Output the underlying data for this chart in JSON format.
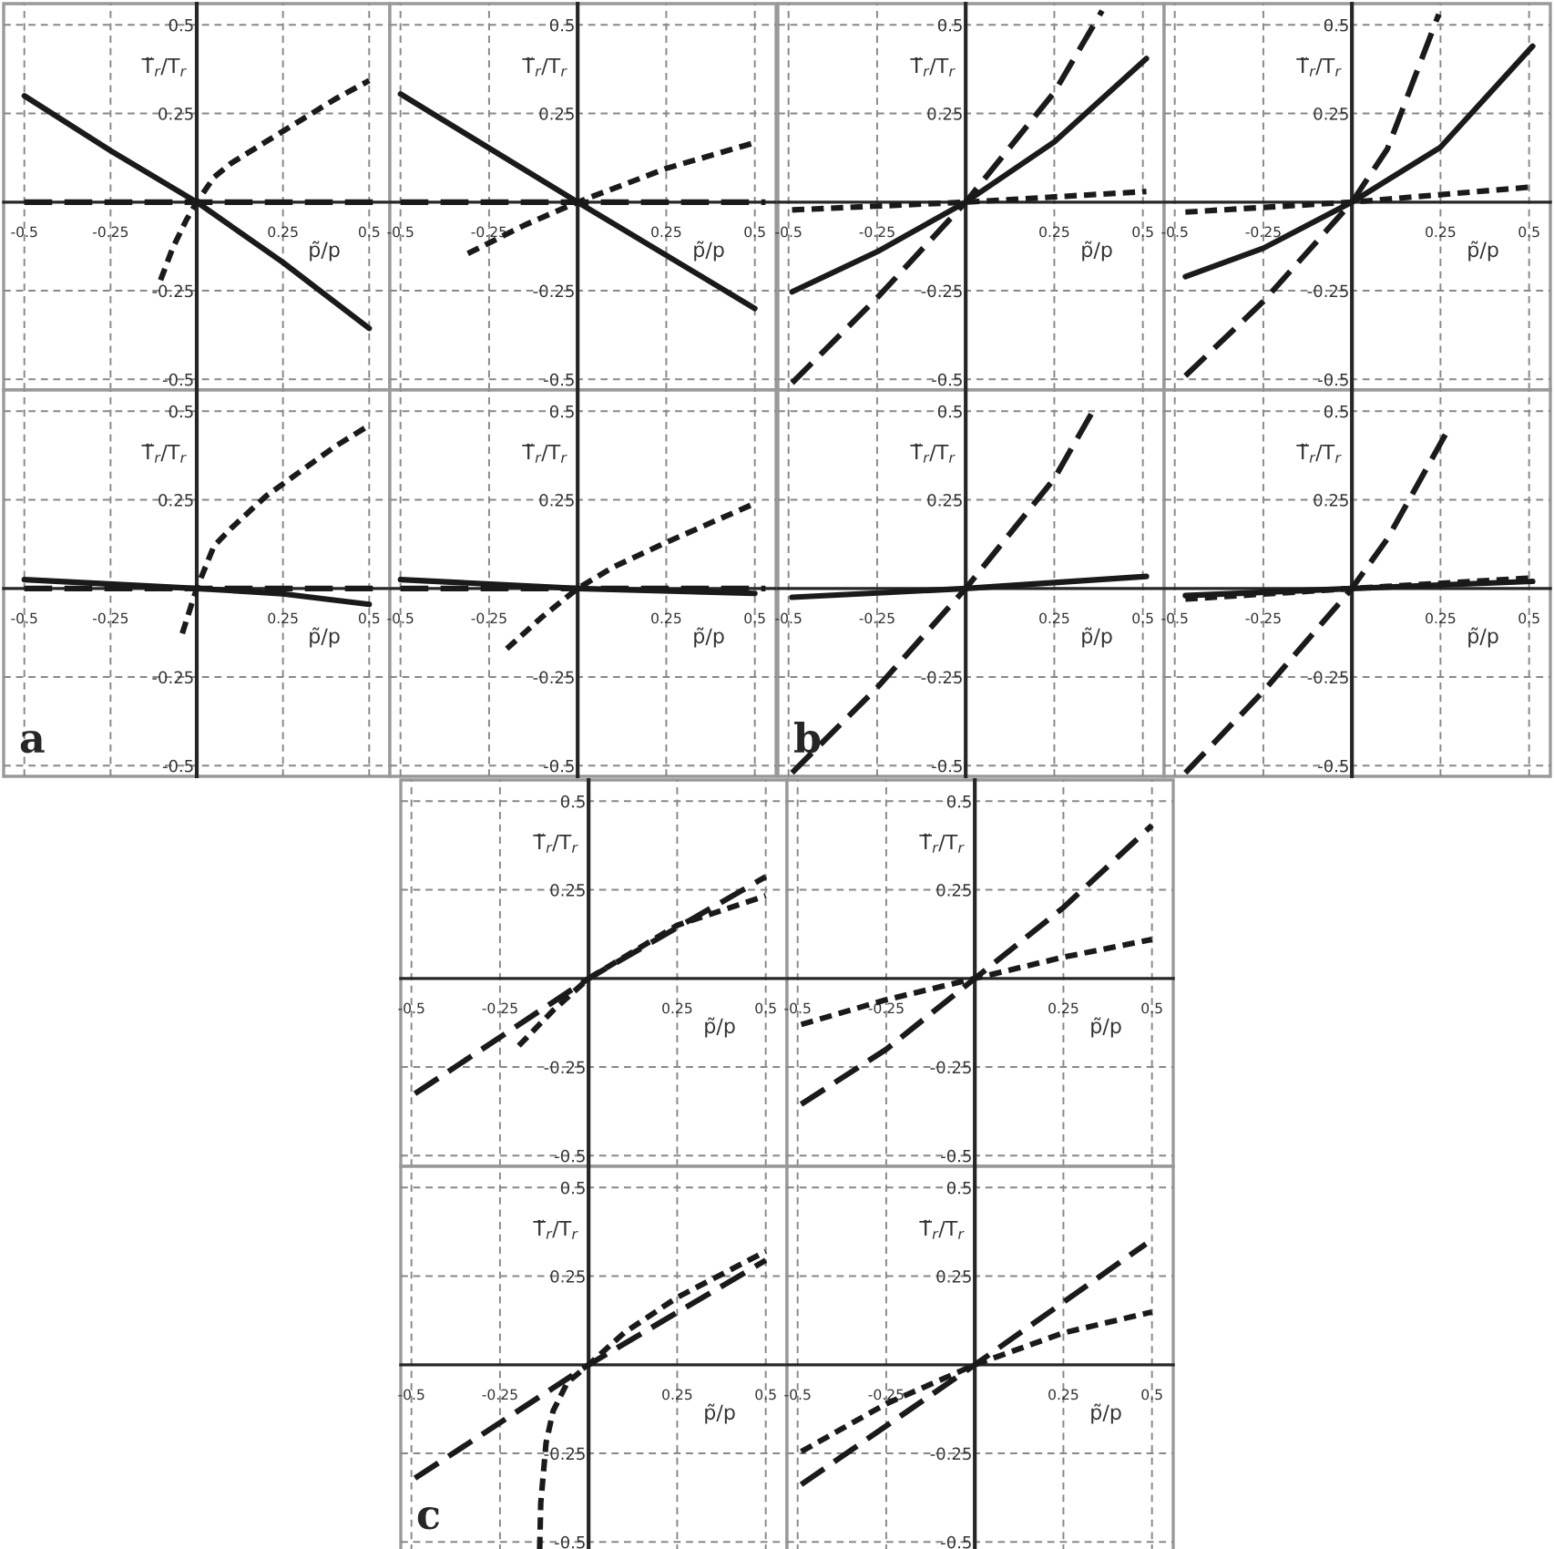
{
  "chart_data": [
    {
      "type": "line",
      "xlim": [
        -0.56,
        0.56
      ],
      "ylim": [
        -0.53,
        0.56
      ],
      "xticks": [
        -0.5,
        -0.25,
        0.25,
        0.5
      ],
      "yticks": [
        -0.5,
        -0.25,
        0.25,
        0.5
      ],
      "grid": true,
      "xlabel": "p̃/p",
      "ylabel": "T̃$_{r}$/T$_{r}$",
      "series": [
        {
          "color": "#1a1a1a",
          "line_style": "solid",
          "x": [
            -0.5,
            -0.25,
            0,
            0.25,
            0.5
          ],
          "values": [
            0.3,
            0.145,
            0,
            -0.17,
            -0.356
          ]
        },
        {
          "color": "#1a1a1a",
          "line_style": "dotted",
          "x": [
            -0.105,
            -0.07,
            -0.03,
            0,
            0.05,
            0.1,
            0.2,
            0.3,
            0.4,
            0.5
          ],
          "values": [
            -0.22,
            -0.13,
            -0.05,
            0,
            0.07,
            0.11,
            0.17,
            0.23,
            0.29,
            0.343
          ]
        },
        {
          "color": "#1a1a1a",
          "line_style": "dashed",
          "x": [
            -0.5,
            0.53
          ],
          "values": [
            0,
            0
          ]
        }
      ]
    },
    {
      "type": "line",
      "xlim": [
        -0.53,
        0.56
      ],
      "ylim": [
        -0.53,
        0.56
      ],
      "xticks": [
        -0.5,
        -0.25,
        0.25,
        0.5
      ],
      "yticks": [
        -0.5,
        -0.25,
        0.25,
        0.5
      ],
      "grid": true,
      "xlabel": "p̃/p",
      "ylabel": "T̃$_{r}$/T$_{r}$",
      "series": [
        {
          "color": "#1a1a1a",
          "line_style": "solid",
          "x": [
            -0.5,
            0,
            0.5
          ],
          "values": [
            0.305,
            0,
            -0.3
          ]
        },
        {
          "color": "#1a1a1a",
          "line_style": "dotted",
          "x": [
            -0.31,
            -0.15,
            0,
            0.25,
            0.49
          ],
          "values": [
            -0.145,
            -0.065,
            0,
            0.095,
            0.165
          ]
        },
        {
          "color": "#1a1a1a",
          "line_style": "dashed",
          "x": [
            -0.5,
            0.53
          ],
          "values": [
            0,
            0
          ]
        }
      ]
    },
    {
      "type": "line",
      "xlim": [
        -0.56,
        0.56
      ],
      "ylim": [
        -0.53,
        0.56
      ],
      "xticks": [
        -0.5,
        -0.25,
        0.25,
        0.5
      ],
      "yticks": [
        -0.5,
        -0.25,
        0.25,
        0.5
      ],
      "grid": true,
      "xlabel": "p̃/p",
      "ylabel": "T̃$_{r}$/T$_{r}$",
      "annotations": [
        "a"
      ],
      "series": [
        {
          "color": "#1a1a1a",
          "line_style": "solid",
          "x": [
            -0.5,
            0,
            0.25,
            0.5
          ],
          "values": [
            0.025,
            0,
            -0.015,
            -0.045
          ]
        },
        {
          "color": "#1a1a1a",
          "line_style": "dotted",
          "x": [
            -0.042,
            -0.02,
            0,
            0.05,
            0.1,
            0.2,
            0.3,
            0.4,
            0.5
          ],
          "values": [
            -0.127,
            -0.06,
            0,
            0.12,
            0.17,
            0.26,
            0.33,
            0.4,
            0.46
          ]
        },
        {
          "color": "#1a1a1a",
          "line_style": "dashed",
          "x": [
            -0.5,
            0.53
          ],
          "values": [
            0,
            0
          ]
        }
      ]
    },
    {
      "type": "line",
      "xlim": [
        -0.53,
        0.56
      ],
      "ylim": [
        -0.53,
        0.56
      ],
      "xticks": [
        -0.5,
        -0.25,
        0.25,
        0.5
      ],
      "yticks": [
        -0.5,
        -0.25,
        0.25,
        0.5
      ],
      "grid": true,
      "xlabel": "p̃/p",
      "ylabel": "T̃$_{r}$/T$_{r}$",
      "series": [
        {
          "color": "#1a1a1a",
          "line_style": "solid",
          "x": [
            -0.5,
            0,
            0.5
          ],
          "values": [
            0.025,
            0,
            -0.014
          ]
        },
        {
          "color": "#1a1a1a",
          "line_style": "dotted",
          "x": [
            -0.2,
            -0.1,
            0,
            0.1,
            0.25,
            0.5
          ],
          "values": [
            -0.17,
            -0.08,
            0,
            0.06,
            0.13,
            0.24
          ]
        },
        {
          "color": "#1a1a1a",
          "line_style": "dashed",
          "x": [
            -0.5,
            0.53
          ],
          "values": [
            0,
            0
          ]
        }
      ]
    },
    {
      "type": "line",
      "xlim": [
        -0.53,
        0.56
      ],
      "ylim": [
        -0.53,
        0.56
      ],
      "xticks": [
        -0.5,
        -0.25,
        0.25,
        0.5
      ],
      "yticks": [
        -0.5,
        -0.25,
        0.25,
        0.5
      ],
      "grid": true,
      "xlabel": "p̃/p",
      "ylabel": "T̃$_{r}$/T$_{r}$",
      "series": [
        {
          "color": "#1a1a1a",
          "line_style": "dashed",
          "x": [
            -0.49,
            -0.25,
            0,
            0.25,
            0.385
          ],
          "values": [
            -0.51,
            -0.27,
            0,
            0.31,
            0.54
          ]
        },
        {
          "color": "#1a1a1a",
          "line_style": "solid",
          "x": [
            -0.49,
            -0.25,
            0,
            0.25,
            0.51
          ],
          "values": [
            -0.253,
            -0.14,
            0,
            0.17,
            0.405
          ]
        },
        {
          "color": "#1a1a1a",
          "line_style": "dotted",
          "x": [
            -0.49,
            0,
            0.51
          ],
          "values": [
            -0.022,
            0,
            0.03
          ]
        }
      ]
    },
    {
      "type": "line",
      "xlim": [
        -0.53,
        0.56
      ],
      "ylim": [
        -0.53,
        0.56
      ],
      "xticks": [
        -0.5,
        -0.25,
        0.25,
        0.5
      ],
      "yticks": [
        -0.5,
        -0.25,
        0.25,
        0.5
      ],
      "grid": true,
      "xlabel": "p̃/p",
      "ylabel": "T̃$_{r}$/T$_{r}$",
      "series": [
        {
          "color": "#1a1a1a",
          "line_style": "dashed",
          "x": [
            -0.47,
            -0.25,
            0,
            0.1,
            0.245
          ],
          "values": [
            -0.49,
            -0.28,
            0,
            0.15,
            0.53
          ]
        },
        {
          "color": "#1a1a1a",
          "line_style": "solid",
          "x": [
            -0.47,
            -0.25,
            0,
            0.25,
            0.51
          ],
          "values": [
            -0.21,
            -0.13,
            0,
            0.155,
            0.44
          ]
        },
        {
          "color": "#1a1a1a",
          "line_style": "dotted",
          "x": [
            -0.47,
            0,
            0.51
          ],
          "values": [
            -0.028,
            0,
            0.043
          ]
        }
      ]
    },
    {
      "type": "line",
      "xlim": [
        -0.53,
        0.56
      ],
      "ylim": [
        -0.53,
        0.56
      ],
      "xticks": [
        -0.5,
        -0.25,
        0.25,
        0.5
      ],
      "yticks": [
        -0.5,
        -0.25,
        0.25,
        0.5
      ],
      "grid": true,
      "xlabel": "p̃/p",
      "ylabel": "T̃$_{r}$/T$_{r}$",
      "annotations": [
        "b"
      ],
      "series": [
        {
          "color": "#1a1a1a",
          "line_style": "dashed",
          "x": [
            -0.49,
            -0.25,
            0,
            0.25,
            0.37
          ],
          "values": [
            -0.52,
            -0.28,
            0,
            0.31,
            0.52
          ]
        },
        {
          "color": "#1a1a1a",
          "line_style": "solid",
          "x": [
            -0.49,
            0,
            0.51
          ],
          "values": [
            -0.025,
            0,
            0.034
          ]
        }
      ]
    },
    {
      "type": "line",
      "xlim": [
        -0.53,
        0.56
      ],
      "ylim": [
        -0.53,
        0.56
      ],
      "xticks": [
        -0.5,
        -0.25,
        0.25,
        0.5
      ],
      "yticks": [
        -0.5,
        -0.25,
        0.25,
        0.5
      ],
      "grid": true,
      "xlabel": "p̃/p",
      "ylabel": "T̃$_{r}$/T$_{r}$",
      "series": [
        {
          "color": "#1a1a1a",
          "line_style": "dashed",
          "x": [
            -0.47,
            -0.25,
            0,
            0.1,
            0.267
          ],
          "values": [
            -0.52,
            -0.29,
            0,
            0.14,
            0.44
          ]
        },
        {
          "color": "#1a1a1a",
          "line_style": "solid",
          "x": [
            -0.47,
            0,
            0.51
          ],
          "values": [
            -0.02,
            0,
            0.02
          ]
        },
        {
          "color": "#1a1a1a",
          "line_style": "dotted",
          "x": [
            -0.47,
            0,
            0.51
          ],
          "values": [
            -0.03,
            0,
            0.03
          ]
        }
      ]
    },
    {
      "type": "line",
      "xlim": [
        -0.53,
        0.56
      ],
      "ylim": [
        -0.53,
        0.56
      ],
      "xticks": [
        -0.5,
        -0.25,
        0.25,
        0.5
      ],
      "yticks": [
        -0.5,
        -0.25,
        0.25,
        0.5
      ],
      "grid": true,
      "xlabel": "p̃/p",
      "ylabel": "T̃$_{r}$/T$_{r}$",
      "series": [
        {
          "color": "#1a1a1a",
          "line_style": "dashed",
          "x": [
            -0.49,
            0,
            0.5
          ],
          "values": [
            -0.325,
            0,
            0.287
          ]
        },
        {
          "color": "#1a1a1a",
          "line_style": "dotted",
          "x": [
            -0.197,
            -0.1,
            0,
            0.25,
            0.5
          ],
          "values": [
            -0.19,
            -0.09,
            0,
            0.15,
            0.233
          ]
        }
      ]
    },
    {
      "type": "line",
      "xlim": [
        -0.53,
        0.56
      ],
      "ylim": [
        -0.53,
        0.56
      ],
      "xticks": [
        -0.5,
        -0.25,
        0.25,
        0.5
      ],
      "yticks": [
        -0.5,
        -0.25,
        0.25,
        0.5
      ],
      "grid": true,
      "xlabel": "p̃/p",
      "ylabel": "T̃$_{r}$/T$_{r}$",
      "series": [
        {
          "color": "#1a1a1a",
          "line_style": "dashed",
          "x": [
            -0.49,
            -0.25,
            0,
            0.25,
            0.5
          ],
          "values": [
            -0.355,
            -0.2,
            0,
            0.2,
            0.432
          ]
        },
        {
          "color": "#1a1a1a",
          "line_style": "dotted",
          "x": [
            -0.49,
            -0.25,
            0,
            0.25,
            0.5
          ],
          "values": [
            -0.13,
            -0.06,
            0,
            0.06,
            0.11
          ]
        }
      ]
    },
    {
      "type": "line",
      "xlim": [
        -0.53,
        0.56
      ],
      "ylim": [
        -0.53,
        0.56
      ],
      "xticks": [
        -0.5,
        -0.25,
        0.25,
        0.5
      ],
      "yticks": [
        -0.5,
        -0.25,
        0.25,
        0.5
      ],
      "grid": true,
      "xlabel": "p̃/p",
      "ylabel": "T̃$_{r}$/T$_{r}$",
      "annotations": [
        "c"
      ],
      "series": [
        {
          "color": "#1a1a1a",
          "line_style": "dashed",
          "x": [
            -0.49,
            0,
            0.5
          ],
          "values": [
            -0.32,
            0,
            0.295
          ]
        },
        {
          "color": "#1a1a1a",
          "line_style": "dotted",
          "x": [
            -0.138,
            -0.135,
            -0.12,
            -0.1,
            -0.06,
            0,
            0.1,
            0.25,
            0.5
          ],
          "values": [
            -0.52,
            -0.39,
            -0.22,
            -0.13,
            -0.05,
            0,
            0.09,
            0.19,
            0.32
          ]
        }
      ]
    },
    {
      "type": "line",
      "xlim": [
        -0.53,
        0.56
      ],
      "ylim": [
        -0.53,
        0.56
      ],
      "xticks": [
        -0.5,
        -0.25,
        0.25,
        0.5
      ],
      "yticks": [
        -0.5,
        -0.25,
        0.25,
        0.5
      ],
      "grid": true,
      "xlabel": "p̃/p",
      "ylabel": "T̃$_{r}$/T$_{r}$",
      "series": [
        {
          "color": "#1a1a1a",
          "line_style": "dashed",
          "x": [
            -0.49,
            0,
            0.483
          ],
          "values": [
            -0.338,
            0,
            0.341
          ]
        },
        {
          "color": "#1a1a1a",
          "line_style": "dotted",
          "x": [
            -0.49,
            -0.25,
            0,
            0.25,
            0.5
          ],
          "values": [
            -0.245,
            -0.11,
            0,
            0.09,
            0.149
          ]
        }
      ]
    }
  ]
}
